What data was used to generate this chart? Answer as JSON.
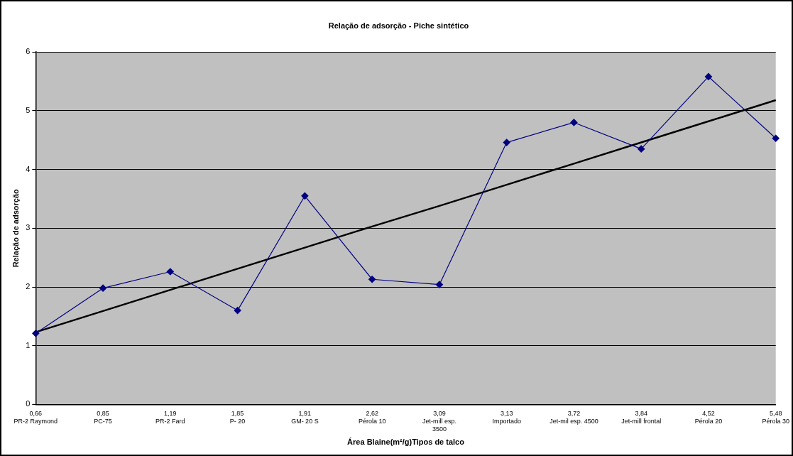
{
  "chart_data": {
    "type": "line",
    "title": "Relação de adsorção - Piche sintético",
    "xlabel": "Área Blaine(m²/g)Tipos de talco",
    "ylabel": "Relação de adsorção",
    "categories": [
      "0,66\nPR-2 Raymond",
      "0,85\nPC-75",
      "1,19\nPR-2 Fard",
      "1,85\nP- 20",
      "1,91\nGM- 20 S",
      "2,62\nPérola 10",
      "3,09\nJet-mill esp.\n3500",
      "3,13\nImportado",
      "3,72\nJet-mil esp. 4500",
      "3,84\nJet-mill frontal",
      "4,52\nPérola 20",
      "5,48\nPérola 30"
    ],
    "series": [
      {
        "color": "#000080",
        "marker": "diamond",
        "values": [
          1.21,
          1.98,
          2.26,
          1.6,
          3.55,
          2.13,
          2.04,
          4.46,
          4.8,
          4.35,
          5.58,
          4.53
        ]
      },
      {
        "color": "#000000",
        "marker": "none",
        "values": [
          1.23,
          1.59,
          1.95,
          2.31,
          2.67,
          3.03,
          3.38,
          3.74,
          4.1,
          4.46,
          4.82,
          5.18
        ]
      }
    ],
    "ylim": [
      0,
      6
    ],
    "yticks": [
      0,
      1,
      2,
      3,
      4,
      5,
      6
    ],
    "grid": "y",
    "legend": false
  }
}
